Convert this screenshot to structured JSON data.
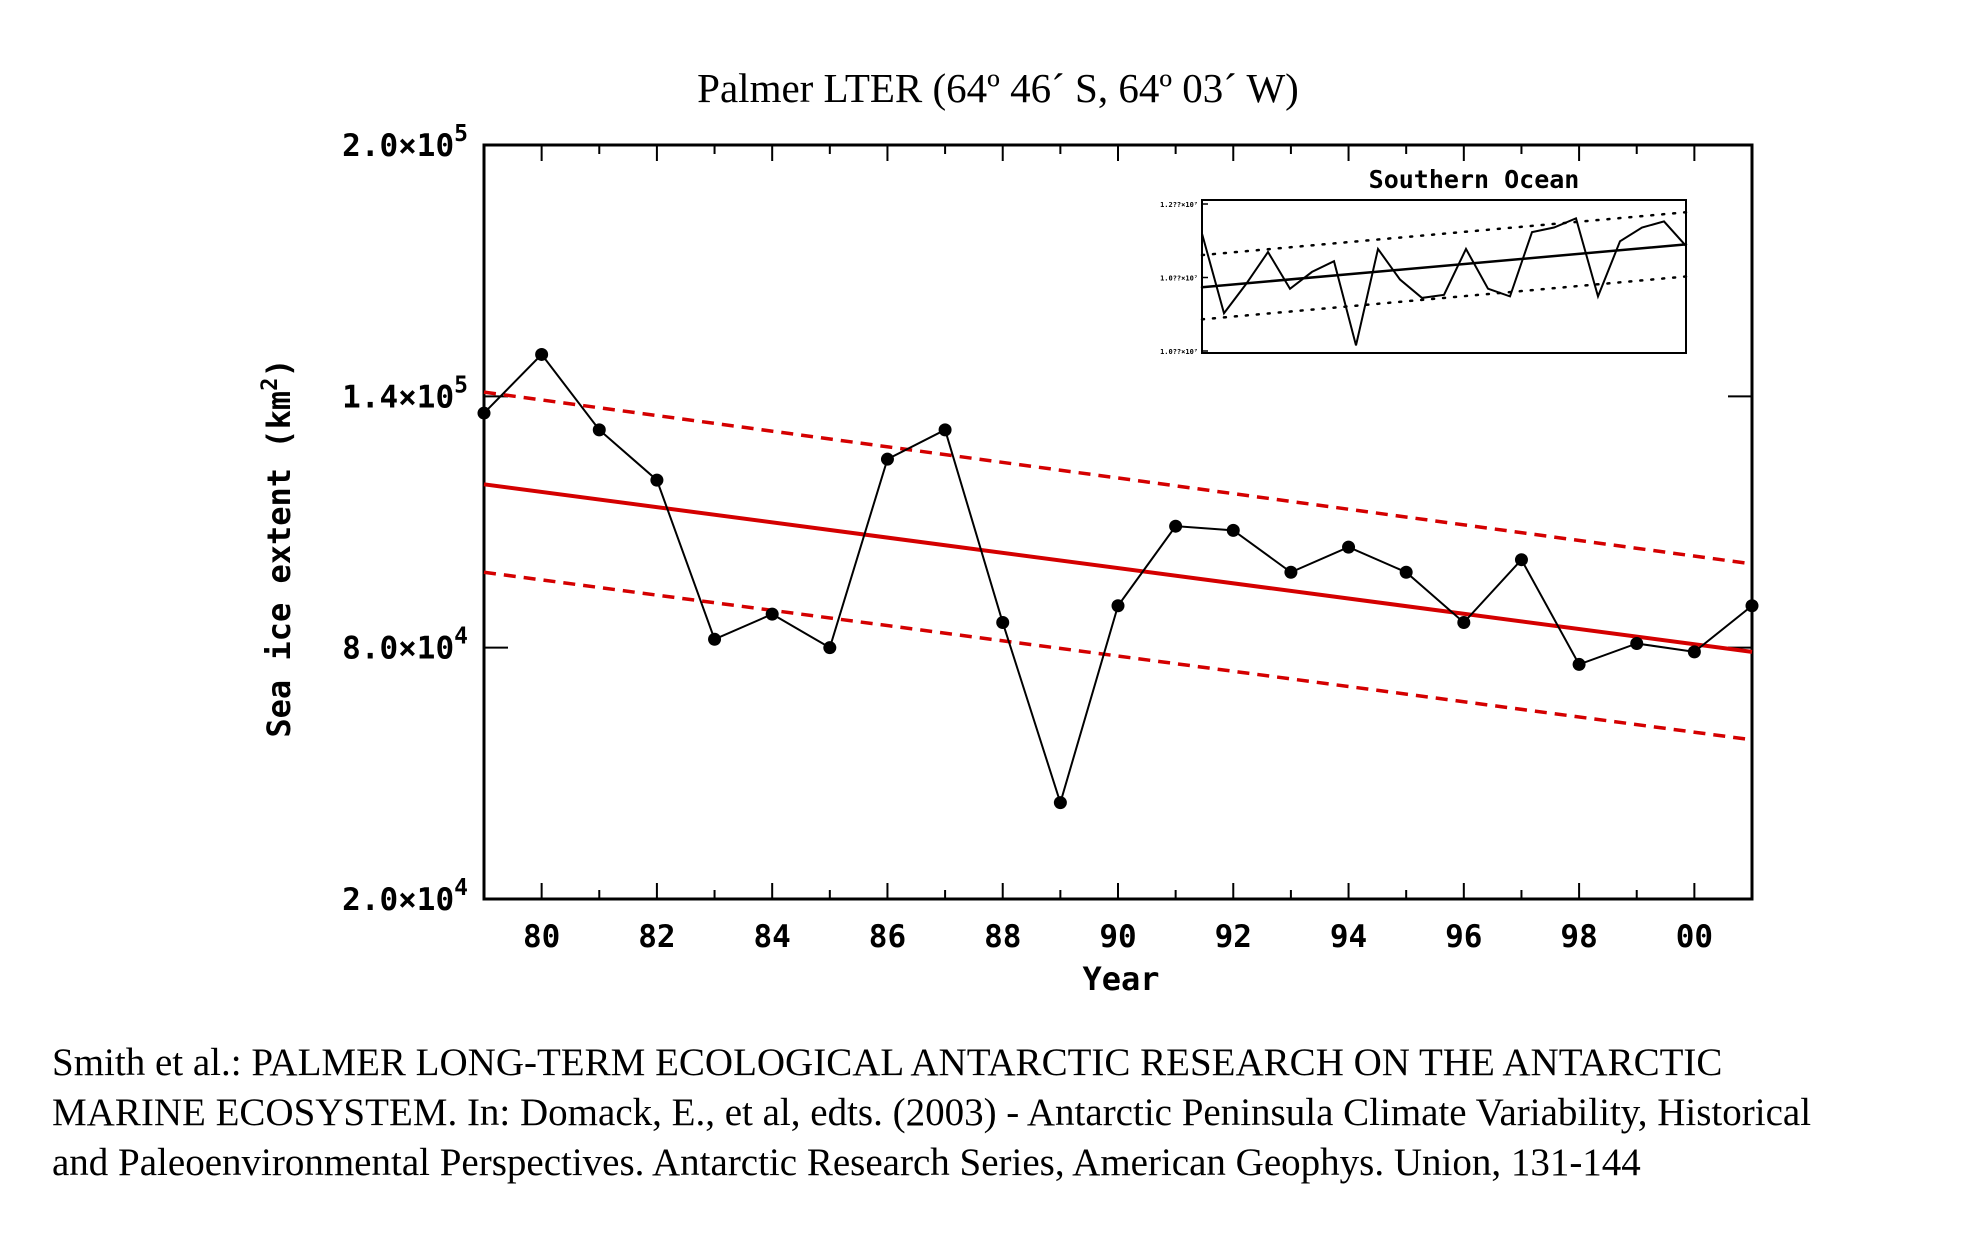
{
  "chart_data": {
    "type": "line",
    "title": "Palmer LTER (64º 46´ S, 64º 03´ W)",
    "xlabel": "Year",
    "ylabel": "Sea ice extent (km²)",
    "xlim": [
      1979,
      2001
    ],
    "ylim": [
      20000,
      200000
    ],
    "x_ticks": [
      1980,
      1982,
      1984,
      1986,
      1988,
      1990,
      1992,
      1994,
      1996,
      1998,
      2000
    ],
    "x_tick_labels": [
      "80",
      "82",
      "84",
      "86",
      "88",
      "90",
      "92",
      "94",
      "96",
      "98",
      "00"
    ],
    "y_ticks": [
      20000,
      80000,
      140000,
      200000
    ],
    "y_tick_labels": [
      "2.0×10⁴",
      "8.0×10⁴",
      "1.4×10⁵",
      "2.0×10⁵"
    ],
    "grid": false,
    "series": [
      {
        "type": "line-markers",
        "color": "#000000",
        "x": [
          1979,
          1980,
          1981,
          1982,
          1983,
          1984,
          1985,
          1986,
          1987,
          1988,
          1989,
          1990,
          1991,
          1992,
          1993,
          1994,
          1995,
          1996,
          1997,
          1998,
          1999,
          2000,
          2001
        ],
        "y": [
          136000,
          150000,
          132000,
          120000,
          82000,
          88000,
          80000,
          125000,
          132000,
          86000,
          43000,
          90000,
          109000,
          108000,
          98000,
          104000,
          98000,
          86000,
          101000,
          76000,
          81000,
          79000,
          90000
        ]
      },
      {
        "type": "trend",
        "color": "#d40000",
        "style": "solid",
        "x": [
          1979,
          2001
        ],
        "y": [
          119000,
          79000
        ]
      },
      {
        "type": "confidence",
        "color": "#d40000",
        "style": "dashed",
        "x": [
          1979,
          2001
        ],
        "y": [
          141000,
          100000
        ]
      },
      {
        "type": "confidence",
        "color": "#d40000",
        "style": "dashed",
        "x": [
          1979,
          2001
        ],
        "y": [
          98000,
          58000
        ]
      }
    ],
    "inset": {
      "type": "line",
      "title": "Southern Ocean",
      "y_tick_labels": [
        "1.2??×10⁷",
        "1.0??×10⁷",
        "1.0??×10⁷"
      ],
      "xlim": [
        1979,
        2001
      ],
      "ylim": [
        0,
        1
      ],
      "series": [
        {
          "type": "line",
          "color": "#000000",
          "x": [
            1979,
            1980,
            1981,
            1982,
            1983,
            1984,
            1985,
            1986,
            1987,
            1988,
            1989,
            1990,
            1991,
            1992,
            1993,
            1994,
            1995,
            1996,
            1997,
            1998,
            1999,
            2000,
            2001
          ],
          "y": [
            0.78,
            0.26,
            0.45,
            0.66,
            0.42,
            0.53,
            0.6,
            0.05,
            0.68,
            0.48,
            0.36,
            0.38,
            0.68,
            0.42,
            0.37,
            0.79,
            0.82,
            0.88,
            0.37,
            0.73,
            0.82,
            0.86,
            0.7
          ]
        },
        {
          "type": "trend",
          "color": "#000000",
          "style": "solid",
          "x": [
            1979,
            2001
          ],
          "y": [
            0.43,
            0.71
          ]
        },
        {
          "type": "confidence",
          "color": "#000000",
          "style": "dotted",
          "x": [
            1979,
            2001
          ],
          "y": [
            0.64,
            0.92
          ]
        },
        {
          "type": "confidence",
          "color": "#000000",
          "style": "dotted",
          "x": [
            1979,
            2001
          ],
          "y": [
            0.22,
            0.5
          ]
        }
      ]
    }
  },
  "citation": {
    "line1": "Smith et al.: PALMER LONG-TERM ECOLOGICAL ANTARCTIC RESEARCH ON THE ANTARCTIC",
    "line2": "MARINE ECOSYSTEM. In: Domack, E., et al, edts. (2003) - Antarctic Peninsula Climate Variability, Historical",
    "line3": "and Paleoenvironmental Perspectives. Antarctic Research Series, American Geophys. Union, 131-144"
  }
}
